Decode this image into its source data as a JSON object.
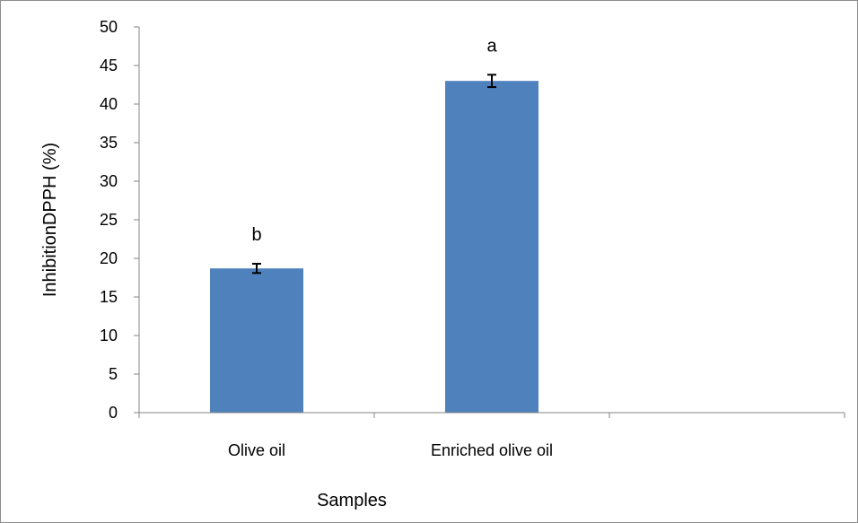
{
  "chart_data": {
    "type": "bar",
    "title": "",
    "xlabel": "Samples",
    "ylabel": "InhibitionDPPH (%)",
    "ylim": [
      0,
      50
    ],
    "yticks": [
      0,
      5,
      10,
      15,
      20,
      25,
      30,
      35,
      40,
      45,
      50
    ],
    "categories": [
      "Olive oil",
      "Enriched olive oil",
      ""
    ],
    "values": [
      18.7,
      43.0,
      null
    ],
    "errors": [
      0.6,
      0.8,
      null
    ],
    "data_labels": [
      "b",
      "a",
      ""
    ],
    "bar_color": "#4F81BD",
    "grid": false,
    "legend": "none"
  }
}
